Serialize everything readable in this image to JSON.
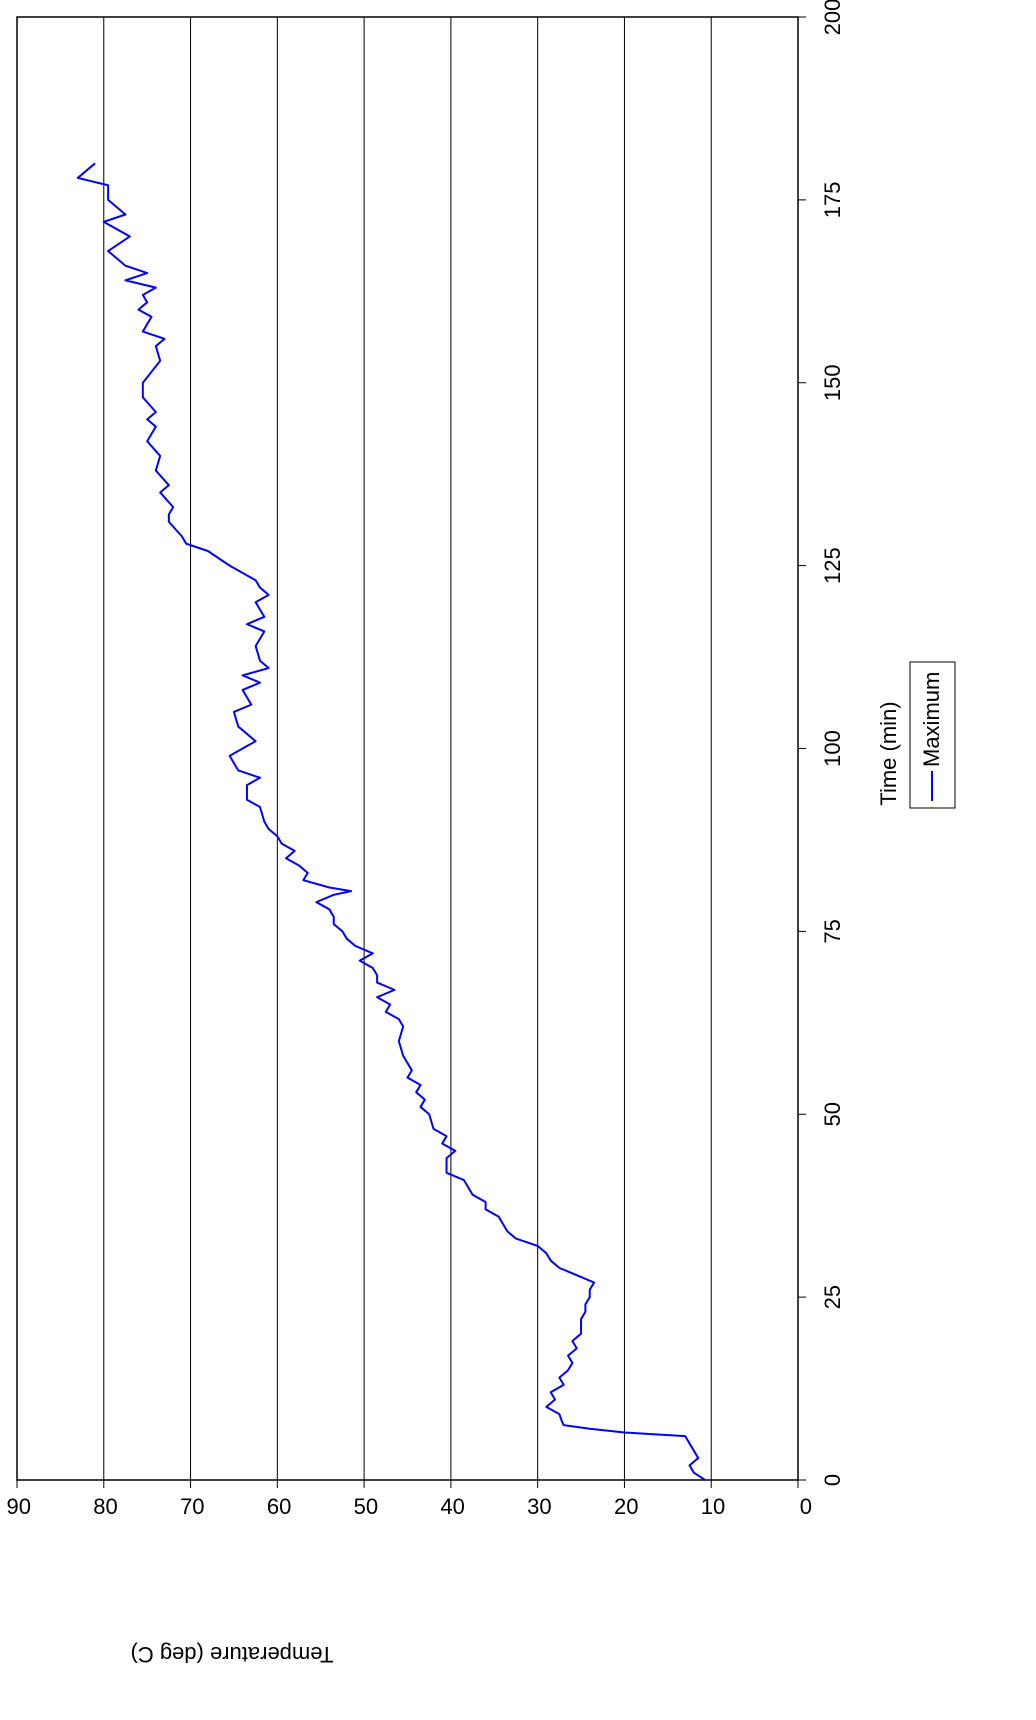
{
  "chart_data": {
    "type": "line",
    "xlabel": "Time (min)",
    "ylabel": "Temperature (deg C)",
    "x": [
      0,
      1,
      2,
      3,
      4,
      5,
      6,
      6.5,
      7,
      7.5,
      8,
      9,
      10,
      11,
      12,
      13,
      14,
      15,
      16,
      17,
      18,
      19,
      20,
      22,
      23,
      24,
      25,
      26,
      27,
      28,
      29,
      30,
      31,
      32,
      33,
      34,
      36,
      37,
      38,
      39,
      40,
      41,
      42,
      44,
      45,
      46,
      47,
      48,
      50,
      51,
      52,
      53,
      54,
      55,
      56,
      58,
      60,
      62,
      63,
      64,
      65,
      66,
      67,
      68,
      69,
      70,
      71,
      72,
      73,
      74,
      75,
      76,
      77,
      78,
      79,
      80,
      80.5,
      81,
      82,
      83,
      84,
      85,
      86,
      87,
      88,
      89,
      90,
      92,
      93,
      95,
      96,
      97,
      99,
      101,
      103,
      105,
      106,
      108,
      109,
      110,
      111,
      112,
      114,
      116,
      117,
      118,
      120,
      121,
      122,
      123,
      125,
      127,
      128,
      129,
      131,
      132,
      133,
      135,
      136,
      138,
      140,
      142,
      144,
      145,
      146,
      148,
      150,
      153,
      155,
      156,
      157,
      159,
      160,
      161,
      162,
      163,
      164,
      165,
      166,
      168,
      170,
      172,
      173,
      175,
      177,
      178,
      180
    ],
    "series": [
      {
        "name": "Maximum",
        "color": "#0000ff",
        "values": [
          10.7,
          12,
          12.5,
          11.5,
          12,
          12.5,
          13,
          20,
          24,
          27,
          27.2,
          27.5,
          29,
          28,
          28.5,
          27,
          27.5,
          26.5,
          26,
          26.5,
          25.5,
          26,
          25,
          25,
          24.5,
          24.5,
          24,
          24,
          23.5,
          25.5,
          27.5,
          28.5,
          29,
          30,
          32.5,
          33.5,
          34.5,
          36,
          36,
          37.5,
          38,
          38.5,
          40.5,
          40.5,
          39.5,
          41,
          40.5,
          42,
          42.5,
          43.5,
          43,
          44,
          43.5,
          45,
          44.5,
          45.5,
          46,
          45.5,
          46,
          47.5,
          47,
          48.5,
          46.5,
          48.5,
          48.5,
          49,
          50.5,
          49,
          51,
          52,
          52.5,
          53.5,
          53.5,
          54,
          55.5,
          53.5,
          51.5,
          54,
          57,
          56.5,
          57.5,
          59,
          58,
          59.5,
          60,
          61,
          61.5,
          62,
          63.5,
          63.5,
          62,
          64.5,
          65.5,
          62.5,
          64.5,
          65,
          63,
          64,
          62,
          64,
          61,
          62,
          62.5,
          61.5,
          63.5,
          61.5,
          62.5,
          61,
          62,
          62.5,
          65.5,
          68,
          70.5,
          71,
          72.5,
          72.5,
          72,
          73.5,
          72.5,
          74,
          73.5,
          75,
          74,
          75,
          74,
          75.5,
          75.5,
          73.5,
          74,
          73,
          75.5,
          74.5,
          76,
          75,
          75.5,
          74,
          77.5,
          75,
          77.5,
          79.5,
          77,
          80,
          77.5,
          79.5,
          79.5,
          83,
          81
        ]
      }
    ],
    "xlim": [
      0,
      200
    ],
    "xticks": [
      0,
      25,
      50,
      75,
      100,
      125,
      150,
      175,
      200
    ],
    "ylim": [
      0,
      90
    ],
    "yticks": [
      0,
      10,
      20,
      30,
      40,
      50,
      60,
      70,
      80,
      90
    ],
    "grid": true
  }
}
